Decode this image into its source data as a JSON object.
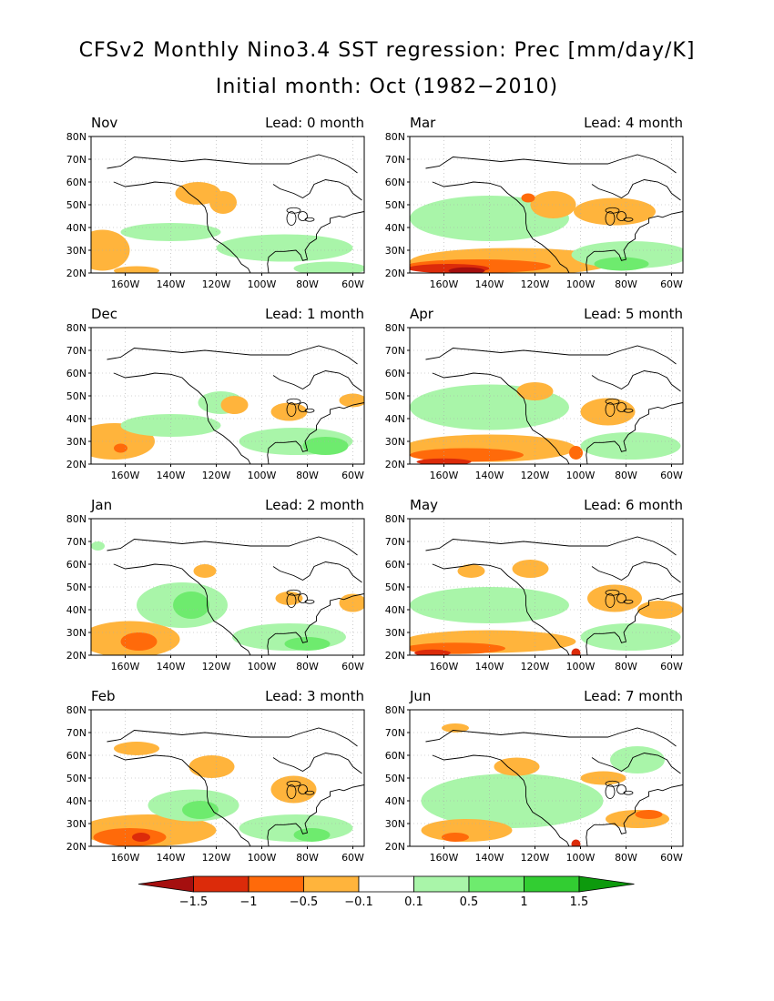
{
  "title": {
    "line1": "CFSv2 Monthly Nino3.4 SST regression: Prec [mm/day/K]",
    "line2": "Initial month: Oct (1982−2010)"
  },
  "colors": {
    "d4": "#a50f0f",
    "d3": "#dc2b0a",
    "d2": "#ff6a0a",
    "d1": "#ffb43c",
    "w1": "#a9f5a9",
    "w2": "#6eeb6e",
    "w3": "#32cd32",
    "w4": "#0d9a0d",
    "coast": "#000000",
    "grid": "#aaaaaa"
  },
  "chart_data": {
    "type": "heatmap",
    "field": "Precipitation regression on Nino3.4 SST",
    "units": "mm/day/K",
    "region": {
      "lon": [
        -175,
        -55
      ],
      "lat": [
        20,
        80
      ]
    },
    "x_ticks": [
      "160W",
      "140W",
      "120W",
      "100W",
      "80W",
      "60W"
    ],
    "x_tick_values": [
      -160,
      -140,
      -120,
      -100,
      -80,
      -60
    ],
    "y_ticks": [
      "20N",
      "30N",
      "40N",
      "50N",
      "60N",
      "70N",
      "80N"
    ],
    "y_tick_values": [
      20,
      30,
      40,
      50,
      60,
      70,
      80
    ],
    "colorbar": {
      "levels": [
        "−1.5",
        "−1",
        "−0.5",
        "−0.1",
        "0.1",
        "0.5",
        "1",
        "1.5"
      ],
      "bins": [
        "d4",
        "d3",
        "d2",
        "d1",
        "none",
        "w1",
        "w2",
        "w3",
        "w4"
      ]
    },
    "panels": [
      {
        "month": "Nov",
        "lead": "Lead: 0 month",
        "features": [
          {
            "c": "d1",
            "lon": -170,
            "lat": 30,
            "rx": 12,
            "ry": 9
          },
          {
            "c": "d1",
            "lon": -155,
            "lat": 21,
            "rx": 10,
            "ry": 2
          },
          {
            "c": "w1",
            "lon": -140,
            "lat": 38,
            "rx": 22,
            "ry": 4
          },
          {
            "c": "d1",
            "lon": -128,
            "lat": 55,
            "rx": 10,
            "ry": 5
          },
          {
            "c": "d1",
            "lon": -117,
            "lat": 51,
            "rx": 6,
            "ry": 5
          },
          {
            "c": "w1",
            "lon": -90,
            "lat": 31,
            "rx": 30,
            "ry": 6
          },
          {
            "c": "w1",
            "lon": -70,
            "lat": 22,
            "rx": 16,
            "ry": 3
          }
        ]
      },
      {
        "month": "Mar",
        "lead": "Lead: 4 month",
        "features": [
          {
            "c": "w1",
            "lon": -140,
            "lat": 44,
            "rx": 35,
            "ry": 10
          },
          {
            "c": "d1",
            "lon": -130,
            "lat": 25,
            "rx": 45,
            "ry": 6
          },
          {
            "c": "d2",
            "lon": -145,
            "lat": 23,
            "rx": 32,
            "ry": 3
          },
          {
            "c": "d3",
            "lon": -158,
            "lat": 22,
            "rx": 18,
            "ry": 2
          },
          {
            "c": "d4",
            "lon": -150,
            "lat": 21,
            "rx": 8,
            "ry": 1.5
          },
          {
            "c": "d1",
            "lon": -112,
            "lat": 50,
            "rx": 10,
            "ry": 6
          },
          {
            "c": "d1",
            "lon": -85,
            "lat": 47,
            "rx": 18,
            "ry": 6
          },
          {
            "c": "d2",
            "lon": -123,
            "lat": 53,
            "rx": 3,
            "ry": 2
          },
          {
            "c": "w1",
            "lon": -78,
            "lat": 28,
            "rx": 26,
            "ry": 6
          },
          {
            "c": "w2",
            "lon": -82,
            "lat": 24,
            "rx": 12,
            "ry": 3
          }
        ]
      },
      {
        "month": "Dec",
        "lead": "Lead: 1 month",
        "features": [
          {
            "c": "d1",
            "lon": -165,
            "lat": 30,
            "rx": 18,
            "ry": 8
          },
          {
            "c": "d2",
            "lon": -162,
            "lat": 27,
            "rx": 3,
            "ry": 2
          },
          {
            "c": "w1",
            "lon": -140,
            "lat": 37,
            "rx": 22,
            "ry": 5
          },
          {
            "c": "w1",
            "lon": -118,
            "lat": 47,
            "rx": 10,
            "ry": 5
          },
          {
            "c": "d1",
            "lon": -112,
            "lat": 46,
            "rx": 6,
            "ry": 4
          },
          {
            "c": "d1",
            "lon": -88,
            "lat": 43,
            "rx": 8,
            "ry": 4
          },
          {
            "c": "w1",
            "lon": -85,
            "lat": 30,
            "rx": 25,
            "ry": 6
          },
          {
            "c": "w2",
            "lon": -72,
            "lat": 28,
            "rx": 10,
            "ry": 4
          },
          {
            "c": "d1",
            "lon": -60,
            "lat": 48,
            "rx": 6,
            "ry": 3
          }
        ]
      },
      {
        "month": "Apr",
        "lead": "Lead: 5 month",
        "features": [
          {
            "c": "w1",
            "lon": -140,
            "lat": 45,
            "rx": 35,
            "ry": 10
          },
          {
            "c": "d1",
            "lon": -140,
            "lat": 27,
            "rx": 38,
            "ry": 6
          },
          {
            "c": "d2",
            "lon": -150,
            "lat": 24,
            "rx": 25,
            "ry": 3
          },
          {
            "c": "d3",
            "lon": -160,
            "lat": 21,
            "rx": 12,
            "ry": 1.5
          },
          {
            "c": "d1",
            "lon": -120,
            "lat": 52,
            "rx": 8,
            "ry": 4
          },
          {
            "c": "d1",
            "lon": -88,
            "lat": 43,
            "rx": 12,
            "ry": 6
          },
          {
            "c": "w1",
            "lon": -78,
            "lat": 28,
            "rx": 22,
            "ry": 6
          },
          {
            "c": "d2",
            "lon": -102,
            "lat": 25,
            "rx": 3,
            "ry": 3
          }
        ]
      },
      {
        "month": "Jan",
        "lead": "Lead: 2 month",
        "features": [
          {
            "c": "d1",
            "lon": -158,
            "lat": 27,
            "rx": 22,
            "ry": 8
          },
          {
            "c": "d2",
            "lon": -154,
            "lat": 26,
            "rx": 8,
            "ry": 4
          },
          {
            "c": "w1",
            "lon": -135,
            "lat": 42,
            "rx": 20,
            "ry": 10
          },
          {
            "c": "w2",
            "lon": -131,
            "lat": 42,
            "rx": 8,
            "ry": 6
          },
          {
            "c": "d1",
            "lon": -125,
            "lat": 57,
            "rx": 5,
            "ry": 3
          },
          {
            "c": "d1",
            "lon": -88,
            "lat": 45,
            "rx": 6,
            "ry": 3
          },
          {
            "c": "w1",
            "lon": -88,
            "lat": 28,
            "rx": 25,
            "ry": 6
          },
          {
            "c": "w2",
            "lon": -80,
            "lat": 25,
            "rx": 10,
            "ry": 3
          },
          {
            "c": "w1",
            "lon": -172,
            "lat": 68,
            "rx": 3,
            "ry": 2
          },
          {
            "c": "d1",
            "lon": -60,
            "lat": 43,
            "rx": 6,
            "ry": 4
          }
        ]
      },
      {
        "month": "May",
        "lead": "Lead: 6 month",
        "features": [
          {
            "c": "w1",
            "lon": -140,
            "lat": 42,
            "rx": 35,
            "ry": 8
          },
          {
            "c": "d1",
            "lon": -140,
            "lat": 26,
            "rx": 38,
            "ry": 5
          },
          {
            "c": "d2",
            "lon": -155,
            "lat": 23,
            "rx": 22,
            "ry": 2.5
          },
          {
            "c": "d3",
            "lon": -165,
            "lat": 21,
            "rx": 8,
            "ry": 1.5
          },
          {
            "c": "d1",
            "lon": -122,
            "lat": 58,
            "rx": 8,
            "ry": 4
          },
          {
            "c": "d1",
            "lon": -148,
            "lat": 57,
            "rx": 6,
            "ry": 3
          },
          {
            "c": "d1",
            "lon": -85,
            "lat": 45,
            "rx": 12,
            "ry": 6
          },
          {
            "c": "w1",
            "lon": -78,
            "lat": 28,
            "rx": 22,
            "ry": 6
          },
          {
            "c": "d1",
            "lon": -65,
            "lat": 40,
            "rx": 10,
            "ry": 4
          },
          {
            "c": "d3",
            "lon": -102,
            "lat": 21,
            "rx": 2,
            "ry": 2
          }
        ]
      },
      {
        "month": "Feb",
        "lead": "Lead: 3 month",
        "features": [
          {
            "c": "d1",
            "lon": -150,
            "lat": 27,
            "rx": 30,
            "ry": 7
          },
          {
            "c": "d2",
            "lon": -158,
            "lat": 24,
            "rx": 16,
            "ry": 4
          },
          {
            "c": "d3",
            "lon": -153,
            "lat": 24,
            "rx": 4,
            "ry": 2
          },
          {
            "c": "w1",
            "lon": -130,
            "lat": 38,
            "rx": 20,
            "ry": 7
          },
          {
            "c": "w2",
            "lon": -127,
            "lat": 36,
            "rx": 8,
            "ry": 4
          },
          {
            "c": "d1",
            "lon": -122,
            "lat": 55,
            "rx": 10,
            "ry": 5
          },
          {
            "c": "d1",
            "lon": -86,
            "lat": 45,
            "rx": 10,
            "ry": 6
          },
          {
            "c": "w1",
            "lon": -85,
            "lat": 28,
            "rx": 25,
            "ry": 6
          },
          {
            "c": "w2",
            "lon": -78,
            "lat": 25,
            "rx": 8,
            "ry": 3
          },
          {
            "c": "d1",
            "lon": -155,
            "lat": 63,
            "rx": 10,
            "ry": 3
          }
        ]
      },
      {
        "month": "Jun",
        "lead": "Lead: 7 month",
        "features": [
          {
            "c": "w1",
            "lon": -130,
            "lat": 40,
            "rx": 40,
            "ry": 12
          },
          {
            "c": "d1",
            "lon": -150,
            "lat": 27,
            "rx": 20,
            "ry": 5
          },
          {
            "c": "d2",
            "lon": -155,
            "lat": 24,
            "rx": 6,
            "ry": 2
          },
          {
            "c": "d1",
            "lon": -128,
            "lat": 55,
            "rx": 10,
            "ry": 4
          },
          {
            "c": "d1",
            "lon": -90,
            "lat": 50,
            "rx": 10,
            "ry": 3
          },
          {
            "c": "d1",
            "lon": -75,
            "lat": 32,
            "rx": 14,
            "ry": 4
          },
          {
            "c": "d2",
            "lon": -70,
            "lat": 34,
            "rx": 6,
            "ry": 2
          },
          {
            "c": "d3",
            "lon": -102,
            "lat": 21,
            "rx": 2,
            "ry": 2
          },
          {
            "c": "w1",
            "lon": -75,
            "lat": 58,
            "rx": 12,
            "ry": 6
          },
          {
            "c": "d1",
            "lon": -155,
            "lat": 72,
            "rx": 6,
            "ry": 2
          }
        ]
      }
    ]
  }
}
